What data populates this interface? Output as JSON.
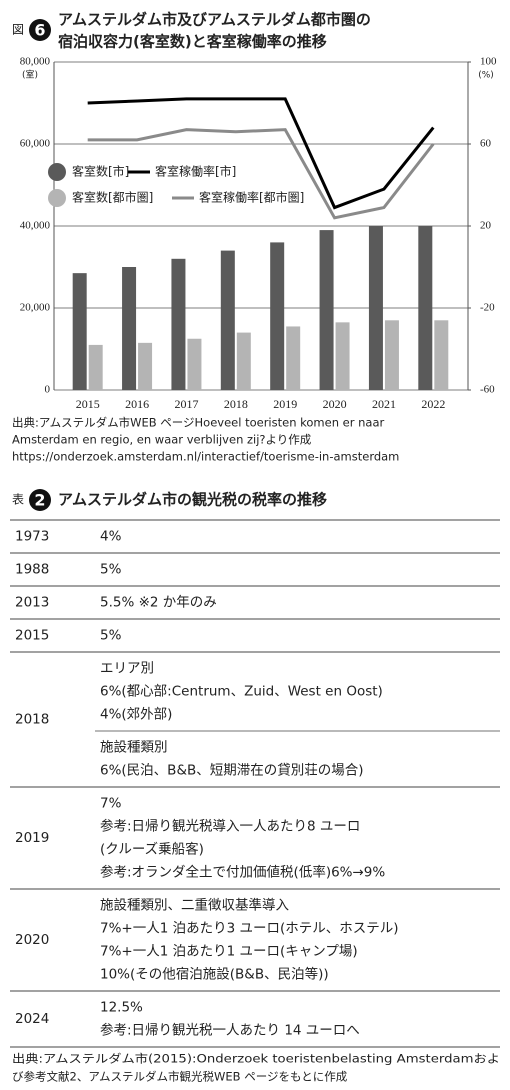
{
  "figure": {
    "label": "図",
    "number": "6",
    "title_lines": [
      "アムステルダム市及びアムステルダム都市圏の",
      "宿泊収容力(客室数)と客室稼働率の推移"
    ]
  },
  "chart_data": {
    "type": "bar",
    "categories": [
      "2015",
      "2016",
      "2017",
      "2018",
      "2019",
      "2020",
      "2021",
      "2022"
    ],
    "series": [
      {
        "name": "客室数[市]",
        "type": "bar",
        "color": "#5a5a5a",
        "values": [
          28500,
          30000,
          32000,
          34000,
          36000,
          39000,
          40000,
          40000
        ]
      },
      {
        "name": "客室稼働率[市]",
        "type": "line",
        "axis": "y2",
        "color": "#000000",
        "values": [
          80,
          81,
          82,
          82,
          82,
          29,
          38,
          68
        ]
      },
      {
        "name": "客室数[都市圏]",
        "type": "bar",
        "color": "#b4b4b4",
        "values": [
          11000,
          11500,
          12500,
          14000,
          15500,
          16500,
          17000,
          17000
        ]
      },
      {
        "name": "客室稼働率[都市圏]",
        "type": "line",
        "axis": "y2",
        "color": "#8a8a8a",
        "values": [
          62,
          62,
          67,
          66,
          67,
          24,
          29,
          60
        ]
      }
    ],
    "ylim": [
      0,
      80000
    ],
    "yticks": [
      0,
      {
        "value": 20000,
        "label": "20,000"
      },
      {
        "value": 40000,
        "label": "40,000"
      },
      {
        "value": 60000,
        "label": "60,000"
      },
      {
        "value": 80000,
        "label": "80,000"
      }
    ],
    "y2lim": [
      -60,
      100
    ],
    "y2ticks": [
      -60,
      -20,
      20,
      60,
      100
    ],
    "y_unit": "(室)",
    "y2_unit": "(%)",
    "grid": true
  },
  "figure_source": [
    "出典:アムステルダム市WEB ページHoeveel toeristen komen er naar",
    "Amsterdam en regio, en waar verblijven zij?より作成",
    "https://onderzoek.amsterdam.nl/interactief/toerisme-in-amsterdam"
  ],
  "table": {
    "label": "表",
    "number": "2",
    "title": "アムステルダム市の観光税の税率の推移",
    "rows": [
      {
        "year": "1973",
        "blocks": [
          [
            "4%"
          ]
        ]
      },
      {
        "year": "1988",
        "blocks": [
          [
            "5%"
          ]
        ]
      },
      {
        "year": "2013",
        "blocks": [
          [
            "5.5% ※2 か年のみ"
          ]
        ]
      },
      {
        "year": "2015",
        "blocks": [
          [
            "5%"
          ]
        ]
      },
      {
        "year": "2018",
        "blocks": [
          [
            "エリア別",
            "6%(都心部:Centrum、Zuid、West en Oost)",
            "4%(郊外部)"
          ],
          [
            "施設種類別",
            "6%(民泊、B&B、短期滞在の貸別荘の場合)"
          ]
        ]
      },
      {
        "year": "2019",
        "blocks": [
          [
            "7%",
            "参考:日帰り観光税導入一人あたり8 ユーロ",
            "(クルーズ乗船客)",
            "参考:オランダ全土で付加価値税(低率)6%→9%"
          ]
        ]
      },
      {
        "year": "2020",
        "blocks": [
          [
            "施設種類別、二重徴収基準導入",
            "7%+一人1 泊あたり3 ユーロ(ホテル、ホステル)",
            "7%+一人1 泊あたり1 ユーロ(キャンプ場)",
            "10%(その他宿泊施設(B&B、民泊等))"
          ]
        ]
      },
      {
        "year": "2024",
        "blocks": [
          [
            "12.5%",
            "参考:日帰り観光税一人あたり 14 ユーロへ"
          ]
        ]
      }
    ]
  },
  "table_source": [
    "出典:アムステルダム市(2015):Onderzoek toeristenbelasting Amsterdamおよ",
    "び参考文献2、アムステルダム市観光税WEB ページをもとに作成"
  ]
}
